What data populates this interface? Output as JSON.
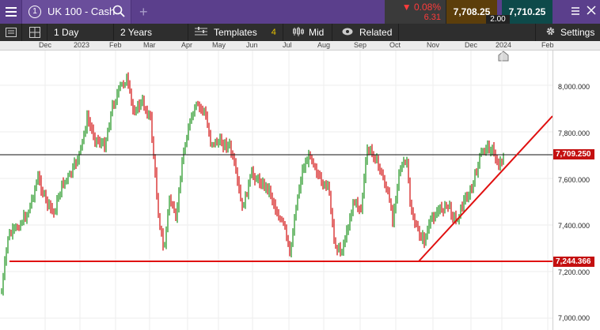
{
  "topbar": {
    "menu_icon": "hamburger-menu-icon",
    "tab_number": "1",
    "tab_title": "UK 100 - Cash",
    "change_pct": "▼ 0.08%",
    "change_abs": "6.31",
    "sell_price": "7,708.25",
    "buy_price": "7,710.25",
    "spread": "2.00"
  },
  "toolbar": {
    "timeframe": "1 Day",
    "range": "2 Years",
    "templates_label": "Templates",
    "templates_count": "4",
    "price_type": "Mid",
    "related_label": "Related",
    "settings_label": "Settings"
  },
  "time_axis": {
    "labels": [
      "Dec",
      "2023",
      "Feb",
      "Mar",
      "Apr",
      "May",
      "Jun",
      "Jul",
      "Aug",
      "Sep",
      "Oct",
      "Nov",
      "Dec",
      "2024",
      "Feb"
    ]
  },
  "price_axis": {
    "ticks": [
      "8,000.000",
      "7,800.000",
      "7,600.000",
      "7,400.000",
      "7,200.000",
      "7,000.000"
    ],
    "current_price_label": "7,709.250",
    "support_label": "7,244.366"
  },
  "colors": {
    "up_candle": "#2e9b2e",
    "down_candle": "#d62020",
    "trendline": "#e01010",
    "topbar_bg": "#5b3f8c"
  }
}
